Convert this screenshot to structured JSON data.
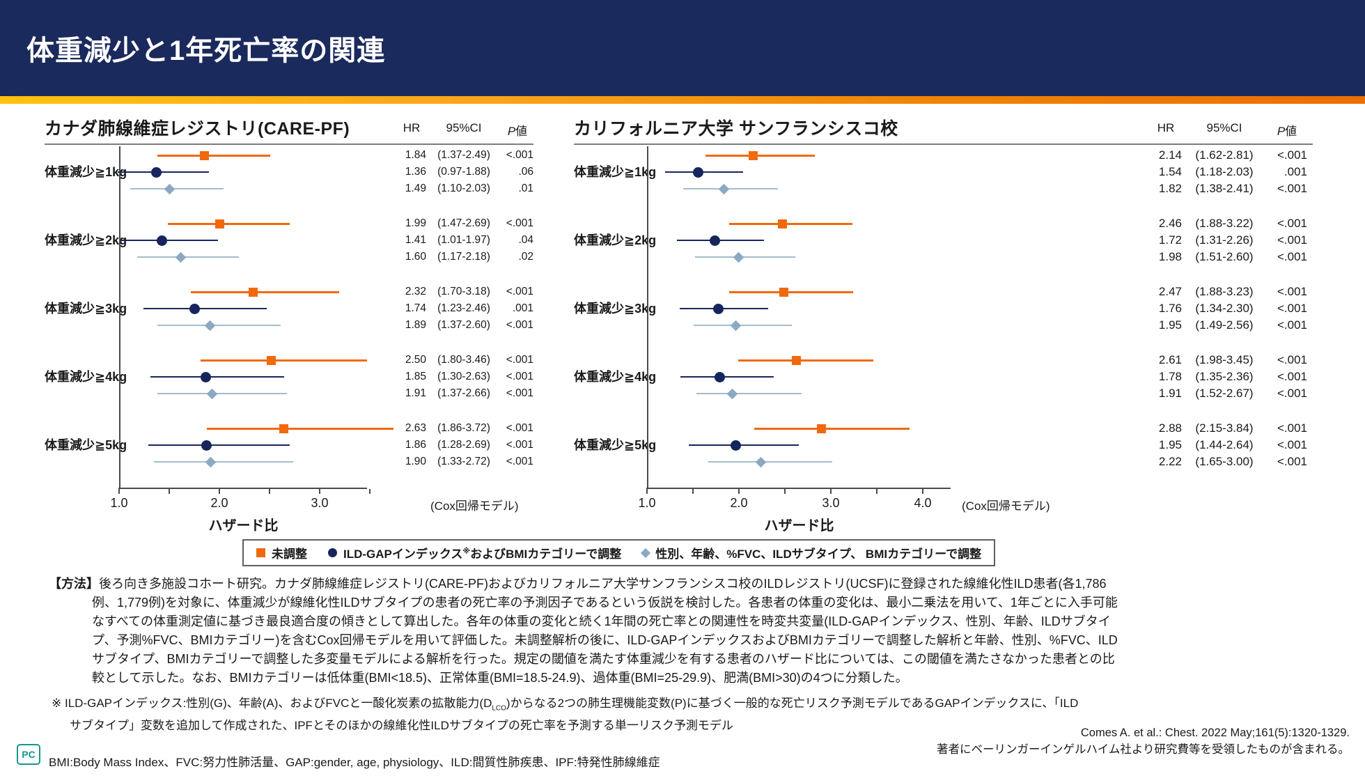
{
  "header": {
    "title": "体重減少と1年死亡率の関連"
  },
  "columns": {
    "hr": "HR",
    "ci": "95%CI",
    "p_italic": "P",
    "p_rest": "値"
  },
  "axis_note": "(Cox回帰モデル)",
  "legend": {
    "items": [
      {
        "marker": "square",
        "color": "#f1690f",
        "label": "未調整"
      },
      {
        "marker": "circle",
        "color": "#16265c",
        "label": "ILD-GAPインデックス※およびBMIカテゴリーで調整"
      },
      {
        "marker": "diamond",
        "color": "#8ca9c3",
        "label": "性別、年齢、%FVC、ILDサブタイプ、 BMIカテゴリーで調整"
      }
    ]
  },
  "chart_data": [
    {
      "type": "forest",
      "title": "カナダ肺線維症レジストリ(CARE-PF)",
      "xlabel": "ハザード比",
      "axis": {
        "min": 1.0,
        "max": 3.5,
        "major_ticks": [
          1.0,
          2.0,
          3.0
        ],
        "minor_ticks": [
          1.5,
          2.5,
          3.5
        ]
      },
      "series": [
        "未調整",
        "ILD-GAPインデックスおよびBMIカテゴリーで調整",
        "性別、年齢、%FVC、ILDサブタイプ、BMIカテゴリーで調整"
      ],
      "groups": [
        {
          "label": "体重減少≧1kg",
          "estimates": [
            {
              "hr": 1.84,
              "lo": 1.37,
              "hi": 2.49,
              "hr_text": "1.84",
              "ci_text": "(1.37-2.49)",
              "p_text": "<.001"
            },
            {
              "hr": 1.36,
              "lo": 0.97,
              "hi": 1.88,
              "hr_text": "1.36",
              "ci_text": "(0.97-1.88)",
              "p_text": ".06"
            },
            {
              "hr": 1.49,
              "lo": 1.1,
              "hi": 2.03,
              "hr_text": "1.49",
              "ci_text": "(1.10-2.03)",
              "p_text": ".01"
            }
          ]
        },
        {
          "label": "体重減少≧2kg",
          "estimates": [
            {
              "hr": 1.99,
              "lo": 1.47,
              "hi": 2.69,
              "hr_text": "1.99",
              "ci_text": "(1.47-2.69)",
              "p_text": "<.001"
            },
            {
              "hr": 1.41,
              "lo": 1.01,
              "hi": 1.97,
              "hr_text": "1.41",
              "ci_text": "(1.01-1.97)",
              "p_text": ".04"
            },
            {
              "hr": 1.6,
              "lo": 1.17,
              "hi": 2.18,
              "hr_text": "1.60",
              "ci_text": "(1.17-2.18)",
              "p_text": ".02"
            }
          ]
        },
        {
          "label": "体重減少≧3kg",
          "estimates": [
            {
              "hr": 2.32,
              "lo": 1.7,
              "hi": 3.18,
              "hr_text": "2.32",
              "ci_text": "(1.70-3.18)",
              "p_text": "<.001"
            },
            {
              "hr": 1.74,
              "lo": 1.23,
              "hi": 2.46,
              "hr_text": "1.74",
              "ci_text": "(1.23-2.46)",
              "p_text": ".001"
            },
            {
              "hr": 1.89,
              "lo": 1.37,
              "hi": 2.6,
              "hr_text": "1.89",
              "ci_text": "(1.37-2.60)",
              "p_text": "<.001"
            }
          ]
        },
        {
          "label": "体重減少≧4kg",
          "estimates": [
            {
              "hr": 2.5,
              "lo": 1.8,
              "hi": 3.46,
              "hr_text": "2.50",
              "ci_text": "(1.80-3.46)",
              "p_text": "<.001"
            },
            {
              "hr": 1.85,
              "lo": 1.3,
              "hi": 2.63,
              "hr_text": "1.85",
              "ci_text": "(1.30-2.63)",
              "p_text": "<.001"
            },
            {
              "hr": 1.91,
              "lo": 1.37,
              "hi": 2.66,
              "hr_text": "1.91",
              "ci_text": "(1.37-2.66)",
              "p_text": "<.001"
            }
          ]
        },
        {
          "label": "体重減少≧5kg",
          "estimates": [
            {
              "hr": 2.63,
              "lo": 1.86,
              "hi": 3.72,
              "hr_text": "2.63",
              "ci_text": "(1.86-3.72)",
              "p_text": "<.001"
            },
            {
              "hr": 1.86,
              "lo": 1.28,
              "hi": 2.69,
              "hr_text": "1.86",
              "ci_text": "(1.28-2.69)",
              "p_text": "<.001"
            },
            {
              "hr": 1.9,
              "lo": 1.33,
              "hi": 2.72,
              "hr_text": "1.90",
              "ci_text": "(1.33-2.72)",
              "p_text": "<.001"
            }
          ]
        }
      ]
    },
    {
      "type": "forest",
      "title": "カリフォルニア大学 サンフランシスコ校",
      "xlabel": "ハザード比",
      "axis": {
        "min": 1.0,
        "max": 4.3,
        "major_ticks": [
          1.0,
          2.0,
          3.0,
          4.0
        ],
        "minor_ticks": [
          1.5,
          2.5,
          3.5
        ]
      },
      "series": [
        "未調整",
        "ILD-GAPインデックスおよびBMIカテゴリーで調整",
        "性別、年齢、%FVC、ILDサブタイプ、BMIカテゴリーで調整"
      ],
      "groups": [
        {
          "label": "体重減少≧1kg",
          "estimates": [
            {
              "hr": 2.14,
              "lo": 1.62,
              "hi": 2.81,
              "hr_text": "2.14",
              "ci_text": "(1.62-2.81)",
              "p_text": "<.001"
            },
            {
              "hr": 1.54,
              "lo": 1.18,
              "hi": 2.03,
              "hr_text": "1.54",
              "ci_text": "(1.18-2.03)",
              "p_text": ".001"
            },
            {
              "hr": 1.82,
              "lo": 1.38,
              "hi": 2.41,
              "hr_text": "1.82",
              "ci_text": "(1.38-2.41)",
              "p_text": "<.001"
            }
          ]
        },
        {
          "label": "体重減少≧2kg",
          "estimates": [
            {
              "hr": 2.46,
              "lo": 1.88,
              "hi": 3.22,
              "hr_text": "2.46",
              "ci_text": "(1.88-3.22)",
              "p_text": "<.001"
            },
            {
              "hr": 1.72,
              "lo": 1.31,
              "hi": 2.26,
              "hr_text": "1.72",
              "ci_text": "(1.31-2.26)",
              "p_text": "<.001"
            },
            {
              "hr": 1.98,
              "lo": 1.51,
              "hi": 2.6,
              "hr_text": "1.98",
              "ci_text": "(1.51-2.60)",
              "p_text": "<.001"
            }
          ]
        },
        {
          "label": "体重減少≧3kg",
          "estimates": [
            {
              "hr": 2.47,
              "lo": 1.88,
              "hi": 3.23,
              "hr_text": "2.47",
              "ci_text": "(1.88-3.23)",
              "p_text": "<.001"
            },
            {
              "hr": 1.76,
              "lo": 1.34,
              "hi": 2.3,
              "hr_text": "1.76",
              "ci_text": "(1.34-2.30)",
              "p_text": "<.001"
            },
            {
              "hr": 1.95,
              "lo": 1.49,
              "hi": 2.56,
              "hr_text": "1.95",
              "ci_text": "(1.49-2.56)",
              "p_text": "<.001"
            }
          ]
        },
        {
          "label": "体重減少≧4kg",
          "estimates": [
            {
              "hr": 2.61,
              "lo": 1.98,
              "hi": 3.45,
              "hr_text": "2.61",
              "ci_text": "(1.98-3.45)",
              "p_text": "<.001"
            },
            {
              "hr": 1.78,
              "lo": 1.35,
              "hi": 2.36,
              "hr_text": "1.78",
              "ci_text": "(1.35-2.36)",
              "p_text": "<.001"
            },
            {
              "hr": 1.91,
              "lo": 1.52,
              "hi": 2.67,
              "hr_text": "1.91",
              "ci_text": "(1.52-2.67)",
              "p_text": "<.001"
            }
          ]
        },
        {
          "label": "体重減少≧5kg",
          "estimates": [
            {
              "hr": 2.88,
              "lo": 2.15,
              "hi": 3.84,
              "hr_text": "2.88",
              "ci_text": "(2.15-3.84)",
              "p_text": "<.001"
            },
            {
              "hr": 1.95,
              "lo": 1.44,
              "hi": 2.64,
              "hr_text": "1.95",
              "ci_text": "(1.44-2.64)",
              "p_text": "<.001"
            },
            {
              "hr": 2.22,
              "lo": 1.65,
              "hi": 3.0,
              "hr_text": "2.22",
              "ci_text": "(1.65-3.00)",
              "p_text": "<.001"
            }
          ]
        }
      ]
    }
  ],
  "methods": {
    "label": "【方法】",
    "text": "後ろ向き多施設コホート研究。カナダ肺線維症レジストリ(CARE-PF)およびカリフォルニア大学サンフランシスコ校のILDレジストリ(UCSF)に登録された線維化性ILD患者(各1,786例、1,779例)を対象に、体重減少が線維化性ILDサブタイプの患者の死亡率の予測因子であるという仮説を検討した。各患者の体重の変化は、最小二乗法を用いて、1年ごとに入手可能なすべての体重測定値に基づき最良適合度の傾きとして算出した。各年の体重の変化と続く1年間の死亡率との関連性を時変共変量(ILD-GAPインデックス、性別、年齢、ILDサブタイプ、予測%FVC、BMIカテゴリー)を含むCox回帰モデルを用いて評価した。未調整解析の後に、ILD-GAPインデックスおよびBMIカテゴリーで調整した解析と年齢、性別、%FVC、ILDサブタイプ、BMIカテゴリーで調整した多変量モデルによる解析を行った。規定の閾値を満たす体重減少を有する患者のハザード比については、この閾値を満たさなかった患者との比較として示した。なお、BMIカテゴリーは低体重(BMI<18.5)、正常体重(BMI=18.5-24.9)、過体重(BMI=25-29.9)、肥満(BMI>30)の4つに分類した。"
  },
  "footnote": {
    "marker": "※",
    "pre_sub": "ILD-GAPインデックス:性別(G)、年齢(A)、およびFVCと一酸化炭素の拡散能力(D",
    "sub": "LCO",
    "post_sub": ")からなる2つの肺生理機能変数(P)に基づく一般的な死亡リスク予測モデルであるGAPインデックスに、「ILDサブタイプ」変数を追加して作成された、IPFとそのほかの線維化性ILDサブタイプの死亡率を予測する単一リスク予測モデル"
  },
  "abbreviations": "BMI:Body Mass Index、FVC:努力性肺活量、GAP:gender, age, physiology、ILD:間質性肺疾患、IPF:特発性肺線維症",
  "citation": {
    "reference": "Comes A. et al.: Chest. 2022 May;161(5):1320-1329.",
    "disclosure": "著者にベーリンガーインゲルハイム社より研究費等を受領したものが含まれる。"
  },
  "logo": {
    "text": "PC"
  },
  "colors": {
    "accent_orange": "#f1690f",
    "navy": "#16265c",
    "steel": "#8ca9c3",
    "header_navy": "#1b2a5c"
  }
}
